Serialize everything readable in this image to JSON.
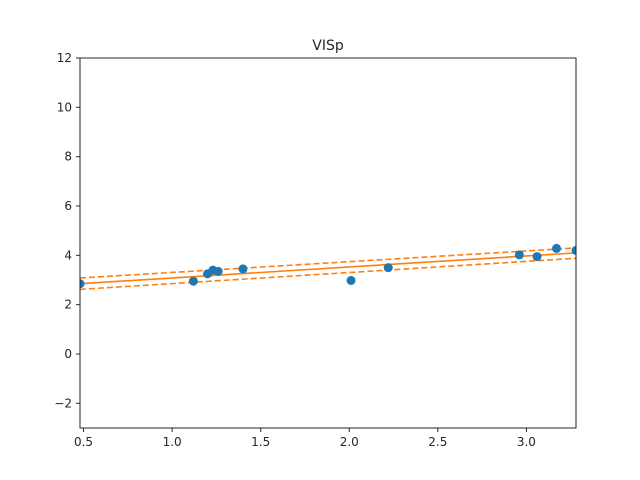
{
  "chart_data": {
    "type": "scatter",
    "title": "VISp",
    "xlabel": "",
    "ylabel": "",
    "xlim": [
      0.48,
      3.28
    ],
    "ylim": [
      -3,
      12
    ],
    "x_ticks": [
      0.5,
      1.0,
      1.5,
      2.0,
      2.5,
      3.0
    ],
    "x_tick_labels": [
      "0.5",
      "1.0",
      "1.5",
      "2.0",
      "2.5",
      "3.0"
    ],
    "y_ticks": [
      -2,
      0,
      2,
      4,
      6,
      8,
      10,
      12
    ],
    "y_tick_labels": [
      "−2",
      "0",
      "2",
      "4",
      "6",
      "8",
      "10",
      "12"
    ],
    "grid": false,
    "legend": "none",
    "colors": {
      "points": "#1f77b4",
      "fit": "#ff7f0e",
      "axes": "#262626"
    },
    "points": [
      {
        "x": 0.48,
        "y": 2.85
      },
      {
        "x": 1.12,
        "y": 2.95
      },
      {
        "x": 1.2,
        "y": 3.25
      },
      {
        "x": 1.23,
        "y": 3.4
      },
      {
        "x": 1.26,
        "y": 3.35
      },
      {
        "x": 1.4,
        "y": 3.45
      },
      {
        "x": 2.01,
        "y": 2.98
      },
      {
        "x": 2.22,
        "y": 3.5
      },
      {
        "x": 2.96,
        "y": 4.02
      },
      {
        "x": 3.06,
        "y": 3.95
      },
      {
        "x": 3.17,
        "y": 4.28
      },
      {
        "x": 3.28,
        "y": 4.2
      }
    ],
    "fit_line": {
      "x": [
        0.48,
        3.28
      ],
      "y": [
        2.85,
        4.1
      ]
    },
    "band_upper": {
      "x": [
        0.48,
        3.28
      ],
      "y": [
        3.08,
        4.3
      ]
    },
    "band_lower": {
      "x": [
        0.48,
        3.28
      ],
      "y": [
        2.62,
        3.88
      ]
    }
  }
}
